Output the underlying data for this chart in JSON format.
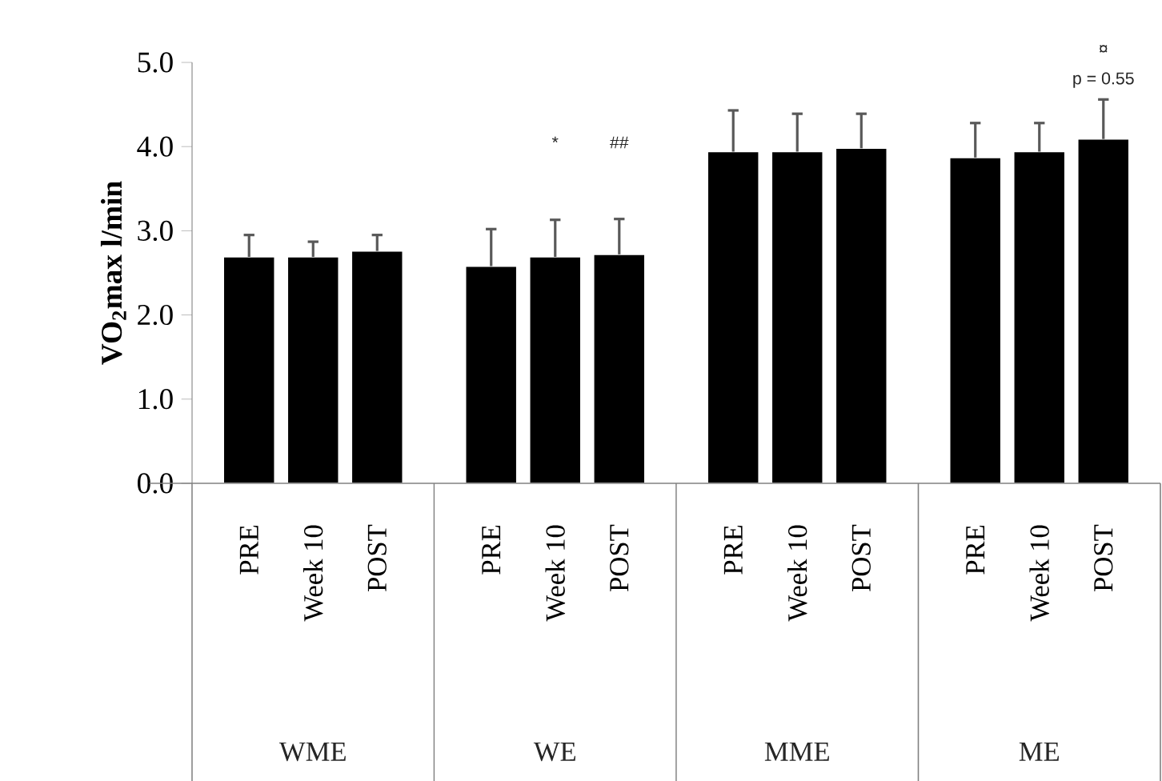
{
  "chart_data": {
    "type": "bar",
    "ylabel": "VO$_{2}$max l/min",
    "categories": [
      "PRE",
      "Week 10",
      "POST",
      "PRE",
      "Week 10",
      "POST",
      "PRE",
      "Week 10",
      "POST",
      "PRE",
      "Week 10",
      "POST"
    ],
    "values": [
      2.69,
      2.69,
      2.76,
      2.58,
      2.69,
      2.72,
      3.94,
      3.94,
      3.98,
      3.87,
      3.94,
      4.09
    ],
    "errors": [
      0.26,
      0.18,
      0.19,
      0.44,
      0.44,
      0.42,
      0.49,
      0.45,
      0.41,
      0.41,
      0.34,
      0.47
    ],
    "color": "#000000",
    "ylim": [
      0,
      5
    ],
    "yticks": [
      {
        "value": 0,
        "label": "0.0"
      },
      {
        "value": 1,
        "label": "1.0"
      },
      {
        "value": 2,
        "label": "2.0"
      },
      {
        "value": 3,
        "label": "3.0"
      },
      {
        "value": 4,
        "label": "4.0"
      },
      {
        "value": 5,
        "label": "5.0"
      }
    ],
    "annotations": [
      "*",
      "##",
      "¤",
      "p = 0.55",
      "WME",
      "WE",
      "MME",
      "ME"
    ]
  }
}
